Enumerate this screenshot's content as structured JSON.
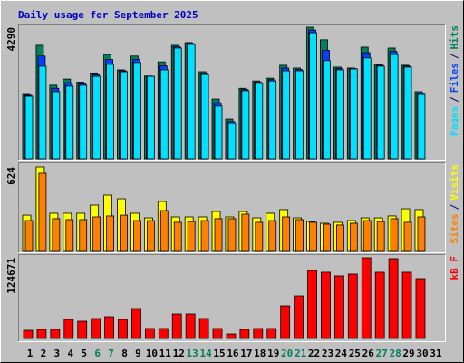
{
  "chart_data": [
    {
      "type": "bar",
      "title": "Daily usage for September 2025",
      "legend_separator": "/",
      "ylim": [
        0,
        4290
      ],
      "yticks": [
        4290
      ],
      "series": [
        {
          "name": "Hits",
          "color": "#00805c",
          "values": [
            2100,
            3700,
            2400,
            2600,
            2500,
            2800,
            3400,
            2900,
            3350,
            2700,
            3160,
            3700,
            3790,
            2840,
            1950,
            1300,
            2300,
            2540,
            2630,
            3050,
            2960,
            4290,
            3880,
            2990,
            2960,
            3640,
            3080,
            3610,
            3050,
            2190,
            0
          ]
        },
        {
          "name": "Files",
          "color": "#0040ff",
          "values": [
            2070,
            3350,
            2300,
            2480,
            2450,
            2740,
            3240,
            2870,
            3240,
            2690,
            3030,
            3650,
            3760,
            2790,
            1830,
            1220,
            2260,
            2500,
            2580,
            2960,
            2910,
            4200,
            3540,
            2940,
            2940,
            3460,
            3050,
            3500,
            3020,
            2140,
            0
          ]
        },
        {
          "name": "Pages",
          "color": "#00e0ff",
          "values": [
            2040,
            3020,
            2190,
            2370,
            2400,
            2690,
            3080,
            2840,
            3140,
            2690,
            2900,
            3610,
            3730,
            2750,
            1720,
            1150,
            2220,
            2460,
            2540,
            2870,
            2870,
            4110,
            3200,
            2900,
            2930,
            3290,
            3020,
            3400,
            2990,
            2100,
            0
          ]
        }
      ]
    },
    {
      "type": "bar",
      "legend_separator": "/",
      "ylim": [
        0,
        624
      ],
      "yticks": [
        624
      ],
      "series": [
        {
          "name": "Visits",
          "color": "#ffff00",
          "values": [
            268,
            624,
            282,
            282,
            282,
            342,
            416,
            389,
            282,
            248,
            369,
            255,
            255,
            255,
            295,
            255,
            295,
            248,
            282,
            309,
            248,
            221,
            208,
            215,
            228,
            248,
            248,
            262,
            315,
            309,
            0
          ]
        },
        {
          "name": "Sites",
          "color": "#ff8000",
          "values": [
            228,
            577,
            242,
            235,
            235,
            255,
            262,
            268,
            228,
            228,
            302,
            215,
            221,
            228,
            242,
            242,
            275,
            215,
            228,
            255,
            235,
            215,
            201,
            195,
            208,
            228,
            221,
            242,
            215,
            255,
            0
          ]
        }
      ]
    },
    {
      "type": "bar",
      "ylim": [
        0,
        124671
      ],
      "yticks": [
        124671
      ],
      "categories": [
        "1",
        "2",
        "3",
        "4",
        "5",
        "6",
        "7",
        "8",
        "9",
        "10",
        "11",
        "12",
        "13",
        "14",
        "15",
        "16",
        "17",
        "18",
        "19",
        "20",
        "21",
        "22",
        "23",
        "24",
        "25",
        "26",
        "27",
        "28",
        "29",
        "30",
        "31"
      ],
      "category_colors": [
        "#000000",
        "#000000",
        "#000000",
        "#000000",
        "#000000",
        "#00805c",
        "#00805c",
        "#000000",
        "#000000",
        "#000000",
        "#000000",
        "#000000",
        "#00805c",
        "#00805c",
        "#000000",
        "#000000",
        "#000000",
        "#000000",
        "#000000",
        "#00805c",
        "#00805c",
        "#000000",
        "#000000",
        "#000000",
        "#000000",
        "#000000",
        "#00805c",
        "#00805c",
        "#000000",
        "#000000",
        "#000000"
      ],
      "series": [
        {
          "name": "kB F",
          "color": "#ff0000",
          "values": [
            12600,
            14000,
            14000,
            29400,
            26600,
            30800,
            33600,
            29400,
            46200,
            15400,
            15400,
            37800,
            37800,
            30800,
            15400,
            7000,
            14000,
            15400,
            15400,
            50400,
            65800,
            105000,
            102300,
            96700,
            99500,
            124671,
            102300,
            123300,
            102300,
            92500,
            0
          ]
        }
      ]
    }
  ]
}
